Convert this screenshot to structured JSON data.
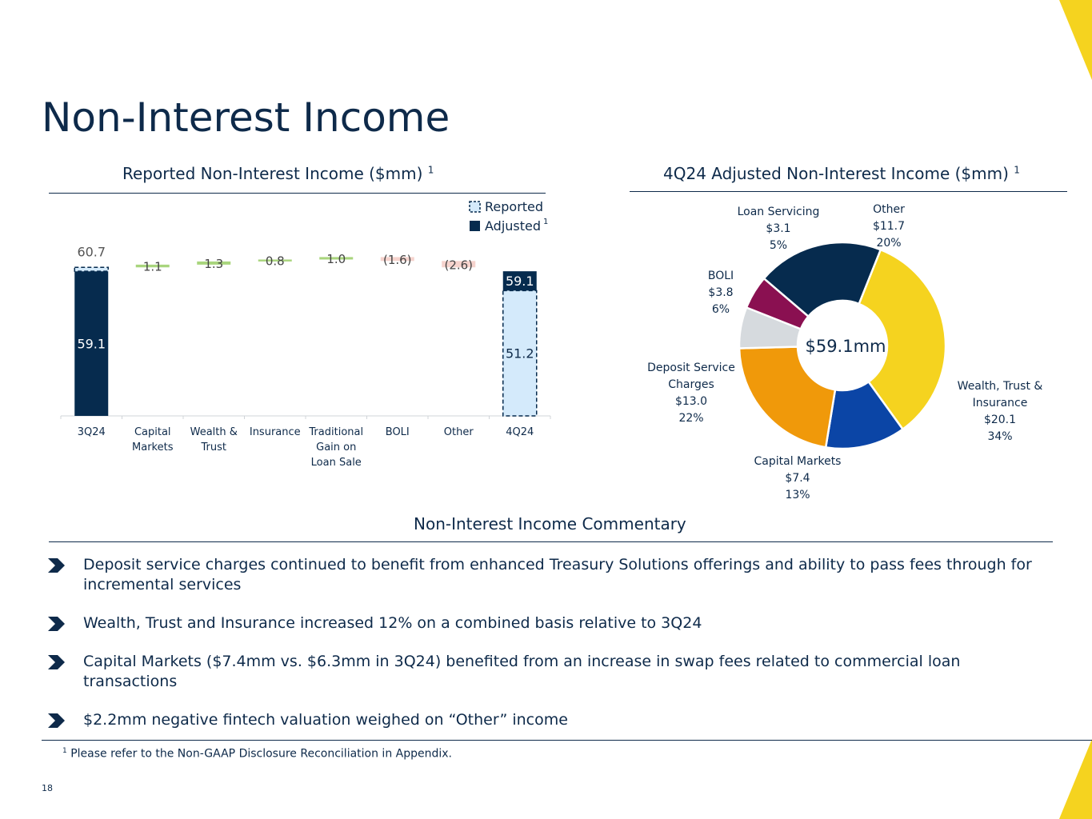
{
  "slide": {
    "title": "Non-Interest Income",
    "page_number": "18",
    "footnote_marker": "1",
    "footnote": "Please refer to the Non-GAAP Disclosure Reconciliation in Appendix."
  },
  "colors": {
    "navy": "#062b4e",
    "light_blue": "#d4eafb",
    "increase": "#a9d57d",
    "decrease": "#f6d3cd",
    "yellow": "#f5d31f",
    "cobalt": "#0b45a6",
    "orange": "#f0990a",
    "gray": "#d6dade",
    "maroon": "#8a1051"
  },
  "commentary": {
    "heading": "Non-Interest Income Commentary",
    "bullets": [
      "Deposit service charges continued to benefit from enhanced Treasury Solutions offerings and ability to pass fees through for incremental services",
      "Wealth, Trust and Insurance increased 12% on a combined basis relative to 3Q24",
      "Capital Markets ($7.4mm vs. $6.3mm in 3Q24) benefited from an increase in swap fees related to commercial loan transactions",
      "$2.2mm negative fintech valuation weighed on “Other” income"
    ]
  },
  "chart_data": [
    {
      "type": "bar",
      "subtype": "waterfall",
      "title": "Reported Non-Interest Income ($mm)",
      "title_superscript": "1",
      "categories": [
        "3Q24",
        "Capital Markets",
        "Wealth & Trust",
        "Insurance",
        "Traditional Gain on Loan Sale",
        "BOLI",
        "Other",
        "4Q24"
      ],
      "legend": [
        {
          "name": "Reported",
          "style": "dashed",
          "color": "#d4eafb"
        },
        {
          "name": "Adjusted",
          "style": "solid",
          "color": "#062b4e",
          "superscript": "1"
        }
      ],
      "ylim": [
        0,
        68
      ],
      "start": {
        "category": "3Q24",
        "adjusted": 59.1,
        "reported": 60.7,
        "adjusted_label": "59.1",
        "reported_label": "60.7"
      },
      "changes": [
        {
          "category": "Capital Markets",
          "value": 1.1,
          "label": "1.1"
        },
        {
          "category": "Wealth & Trust",
          "value": 1.3,
          "label": "1.3"
        },
        {
          "category": "Insurance",
          "value": 0.8,
          "label": "0.8"
        },
        {
          "category": "Traditional Gain on Loan Sale",
          "value": 1.0,
          "label": "1.0"
        },
        {
          "category": "BOLI",
          "value": -1.6,
          "label": "(1.6)"
        },
        {
          "category": "Other",
          "value": -2.6,
          "label": "(2.6)"
        }
      ],
      "end": {
        "category": "4Q24",
        "adjusted": 59.1,
        "reported": 51.2,
        "adjusted_label": "59.1",
        "reported_label": "51.2"
      }
    },
    {
      "type": "pie",
      "subtype": "donut",
      "title": "4Q24 Adjusted Non-Interest Income ($mm)",
      "title_superscript": "1",
      "center_label": "$59.1mm",
      "total": 59.1,
      "slices": [
        {
          "name": "Other",
          "value": 11.7,
          "value_label": "$11.7",
          "percent": "20%",
          "color": "#062b4e"
        },
        {
          "name": "Wealth, Trust & Insurance",
          "value": 20.1,
          "value_label": "$20.1",
          "percent": "34%",
          "color": "#f5d31f"
        },
        {
          "name": "Capital Markets",
          "value": 7.4,
          "value_label": "$7.4",
          "percent": "13%",
          "color": "#0b45a6"
        },
        {
          "name": "Deposit Service Charges",
          "value": 13.0,
          "value_label": "$13.0",
          "percent": "22%",
          "color": "#f0990a"
        },
        {
          "name": "BOLI",
          "value": 3.8,
          "value_label": "$3.8",
          "percent": "6%",
          "color": "#d6dade"
        },
        {
          "name": "Loan Servicing",
          "value": 3.1,
          "value_label": "$3.1",
          "percent": "5%",
          "color": "#8a1051"
        }
      ]
    }
  ]
}
